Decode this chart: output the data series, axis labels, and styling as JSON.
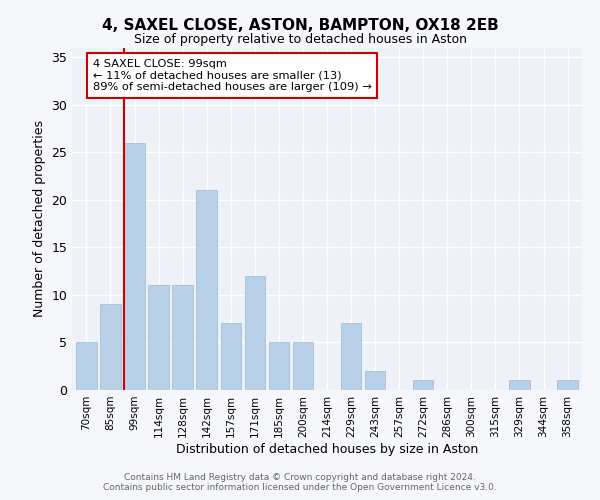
{
  "title1": "4, SAXEL CLOSE, ASTON, BAMPTON, OX18 2EB",
  "title2": "Size of property relative to detached houses in Aston",
  "xlabel": "Distribution of detached houses by size in Aston",
  "ylabel": "Number of detached properties",
  "categories": [
    "70sqm",
    "85sqm",
    "99sqm",
    "114sqm",
    "128sqm",
    "142sqm",
    "157sqm",
    "171sqm",
    "185sqm",
    "200sqm",
    "214sqm",
    "229sqm",
    "243sqm",
    "257sqm",
    "272sqm",
    "286sqm",
    "300sqm",
    "315sqm",
    "329sqm",
    "344sqm",
    "358sqm"
  ],
  "values": [
    5,
    9,
    26,
    11,
    11,
    21,
    7,
    12,
    5,
    5,
    0,
    7,
    2,
    0,
    1,
    0,
    0,
    0,
    1,
    0,
    1
  ],
  "bar_color": "#b8d0e8",
  "bar_edgecolor": "#a0b8d0",
  "vline_color": "#cc0000",
  "annotation_lines": [
    "4 SAXEL CLOSE: 99sqm",
    "← 11% of detached houses are smaller (13)",
    "89% of semi-detached houses are larger (109) →"
  ],
  "annotation_box_color": "#cc0000",
  "ylim": [
    0,
    36
  ],
  "yticks": [
    0,
    5,
    10,
    15,
    20,
    25,
    30,
    35
  ],
  "background_color": "#eef2f8",
  "grid_color": "#ffffff",
  "fig_facecolor": "#f5f7fa",
  "footer_line1": "Contains HM Land Registry data © Crown copyright and database right 2024.",
  "footer_line2": "Contains public sector information licensed under the Open Government Licence v3.0."
}
